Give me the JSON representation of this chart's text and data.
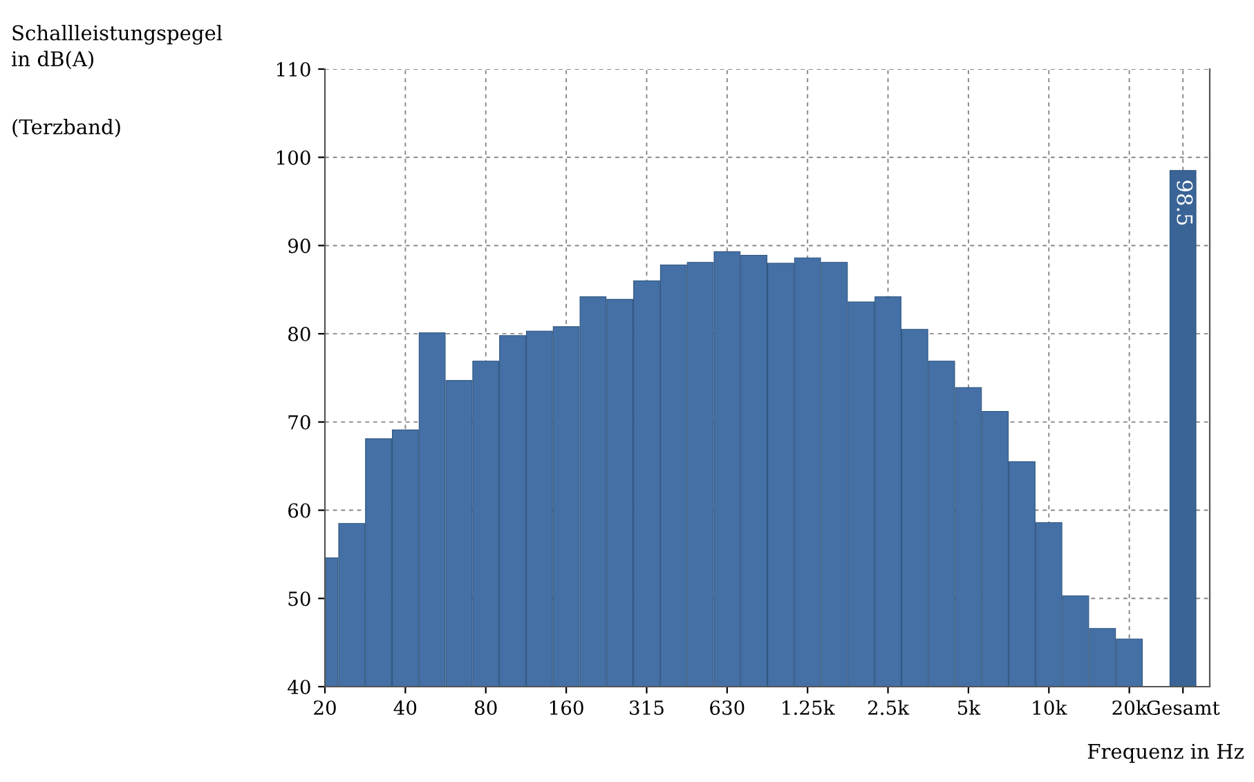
{
  "chart_data": {
    "type": "bar",
    "ylabel": "Schallleistungspegel\nin dB(A)",
    "xlabel": "Frequenz in Hz",
    "annotations": [
      "(Terzband)"
    ],
    "categories": [
      "20",
      null,
      null,
      "40",
      null,
      null,
      "80",
      null,
      null,
      "160",
      null,
      null,
      "315",
      null,
      null,
      "630",
      null,
      null,
      "1.25k",
      null,
      null,
      "2.5k",
      null,
      null,
      "5k",
      null,
      null,
      "10k",
      null,
      null,
      "20k",
      null,
      "Gesamt"
    ],
    "values": [
      54.6,
      58.5,
      68.1,
      69.1,
      80.1,
      74.7,
      76.9,
      79.8,
      80.3,
      80.8,
      84.2,
      83.9,
      86.0,
      87.8,
      88.1,
      89.3,
      88.9,
      88.0,
      88.6,
      88.1,
      83.6,
      84.2,
      80.5,
      76.9,
      73.9,
      71.2,
      65.5,
      58.6,
      50.3,
      46.6,
      45.4,
      null,
      98.5
    ],
    "colors": [
      "#4470a6",
      "#4470a6",
      "#4470a6",
      "#4470a6",
      "#4470a6",
      "#4470a6",
      "#4470a6",
      "#4470a6",
      "#4470a6",
      "#4470a6",
      "#4470a6",
      "#4470a6",
      "#4470a6",
      "#4470a6",
      "#4470a6",
      "#4470a6",
      "#4470a6",
      "#4470a6",
      "#4470a6",
      "#4470a6",
      "#4470a6",
      "#4470a6",
      "#4470a6",
      "#4470a6",
      "#4470a6",
      "#4470a6",
      "#4470a6",
      "#4470a6",
      "#4470a6",
      "#4470a6",
      "#4470a6",
      null,
      "#3a6496"
    ],
    "value_labels": [
      null,
      null,
      null,
      null,
      null,
      null,
      null,
      null,
      null,
      null,
      null,
      null,
      null,
      null,
      null,
      null,
      null,
      null,
      null,
      null,
      null,
      null,
      null,
      null,
      null,
      null,
      null,
      null,
      null,
      null,
      null,
      null,
      "98.5"
    ],
    "ylim": [
      40,
      110
    ],
    "yticks": [
      40,
      50,
      60,
      70,
      80,
      90,
      100,
      110
    ],
    "grid": true
  }
}
